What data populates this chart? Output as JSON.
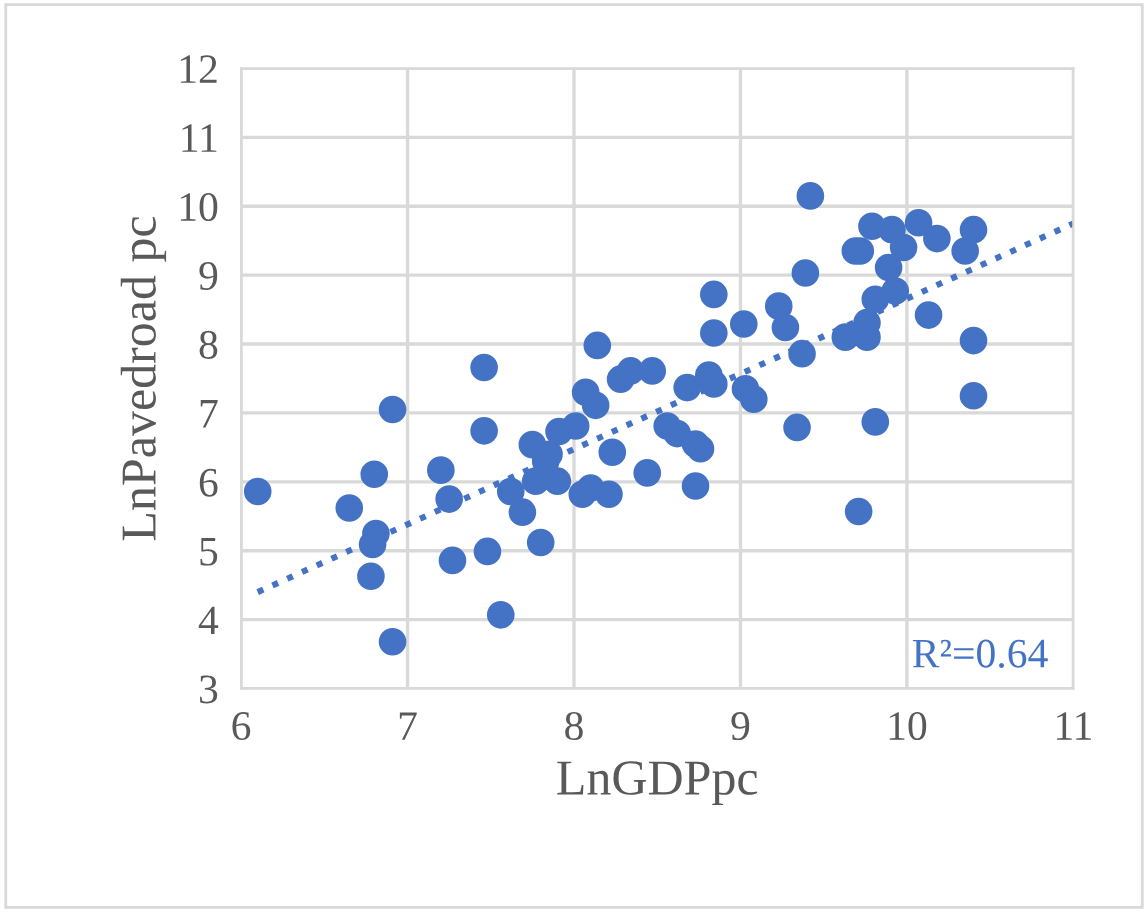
{
  "chart_data": {
    "type": "scatter",
    "xlabel": "LnGDPpc",
    "ylabel": "LnPavedroad pc",
    "annotations": [
      "R²=0.64"
    ],
    "xlim": [
      6,
      11
    ],
    "ylim": [
      3,
      12
    ],
    "xticks": [
      6,
      7,
      8,
      9,
      10,
      11
    ],
    "yticks": [
      3,
      4,
      5,
      6,
      7,
      8,
      9,
      10,
      11,
      12
    ],
    "grid": true,
    "legend": false,
    "series": [
      {
        "color": "#4472c4",
        "marker": "circle",
        "x": [
          6.1,
          6.65,
          6.8,
          6.91,
          6.81,
          6.79,
          6.78,
          6.91,
          7.2,
          7.25,
          7.27,
          7.46,
          7.46,
          7.48,
          7.56,
          7.62,
          7.69,
          7.75,
          7.8,
          7.77,
          7.83,
          7.85,
          7.9,
          7.91,
          8.01,
          8.05,
          8.1,
          8.21,
          8.07,
          8.13,
          8.14,
          8.23,
          8.28,
          8.34,
          8.47,
          8.44,
          8.56,
          8.62,
          8.73,
          8.76,
          8.73,
          8.68,
          8.81,
          8.84,
          8.84,
          8.84,
          9.02,
          9.03,
          9.08,
          9.23,
          9.27,
          9.34,
          9.37,
          9.39,
          9.42,
          9.63,
          9.71,
          9.76,
          9.76,
          9.81,
          9.69,
          9.72,
          9.79,
          9.91,
          9.98,
          10.07,
          9.89,
          9.81,
          9.93,
          10.18,
          10.13,
          10.35,
          10.4,
          10.4,
          10.4
        ],
        "values": [
          5.86,
          5.62,
          6.11,
          7.05,
          5.25,
          5.09,
          4.63,
          3.68,
          6.17,
          5.75,
          4.86,
          7.66,
          6.74,
          4.99,
          4.07,
          5.86,
          5.56,
          6.54,
          5.12,
          6.01,
          6.3,
          6.4,
          6.01,
          6.73,
          6.81,
          5.82,
          5.91,
          5.82,
          7.3,
          7.11,
          7.98,
          6.43,
          7.49,
          7.61,
          7.61,
          6.13,
          6.81,
          6.7,
          6.55,
          6.48,
          5.94,
          7.37,
          7.55,
          7.42,
          8.72,
          8.16,
          8.29,
          7.35,
          7.2,
          8.55,
          8.24,
          6.79,
          7.86,
          9.03,
          10.15,
          8.1,
          5.57,
          8.31,
          8.1,
          6.87,
          9.35,
          9.35,
          9.71,
          9.66,
          9.4,
          9.76,
          9.11,
          8.65,
          8.77,
          9.53,
          8.42,
          9.35,
          9.66,
          8.05,
          7.25
        ]
      },
      {
        "type": "line",
        "color": "#4472c4",
        "line_style": "dotted",
        "marker": "none",
        "x": [
          6.1,
          11
        ],
        "values": [
          4.4,
          9.75
        ]
      }
    ]
  }
}
